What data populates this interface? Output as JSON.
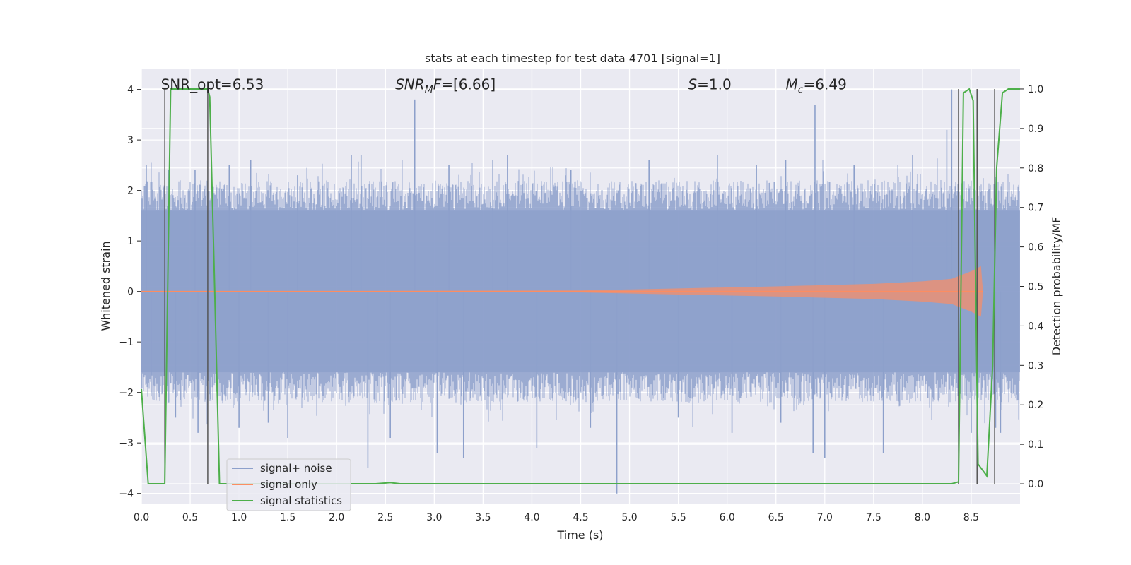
{
  "chart_data": {
    "type": "line",
    "title": "stats at each timestep for test data 4701 [signal=1]",
    "xlabel": "Time (s)",
    "ylabel": "Whitened strain",
    "y2label": "Detection probability/MF",
    "xlim": [
      0.0,
      9.0
    ],
    "ylim": [
      -4.2,
      4.4
    ],
    "y2lim": [
      -0.05,
      1.05
    ],
    "xticks": [
      "0.0",
      "0.5",
      "1.0",
      "1.5",
      "2.0",
      "2.5",
      "3.0",
      "3.5",
      "4.0",
      "4.5",
      "5.0",
      "5.5",
      "6.0",
      "6.5",
      "7.0",
      "7.5",
      "8.0",
      "8.5"
    ],
    "yticks": [
      "−4",
      "−3",
      "−2",
      "−1",
      "0",
      "1",
      "2",
      "3",
      "4"
    ],
    "y2ticks": [
      "0.0",
      "0.1",
      "0.2",
      "0.3",
      "0.4",
      "0.5",
      "0.6",
      "0.7",
      "0.8",
      "0.9",
      "1.0"
    ],
    "grid": true,
    "legend_position": "lower-left",
    "annotations": [
      {
        "text": "SNR_opt=6.53",
        "x": 0.2,
        "y": 4.1
      },
      {
        "text": "SNR",
        "sub": "M",
        "suffix": "F=[6.66]",
        "x": 2.6,
        "y": 4.1
      },
      {
        "text": "S",
        "suffix": "=1.0",
        "x": 5.6,
        "y": 4.1
      },
      {
        "text": "M",
        "sub": "c",
        "suffix": "=6.49",
        "x": 6.6,
        "y": 4.1
      }
    ],
    "series": [
      {
        "name": "signal+ noise",
        "color": "#8da0cb",
        "axis": "left",
        "noise_band": {
          "core": 1.6,
          "typical_peak": 2.2
        },
        "spikes": [
          {
            "x": 0.05,
            "y": 2.5
          },
          {
            "x": 0.1,
            "y": -2.0
          },
          {
            "x": 0.28,
            "y": 2.4
          },
          {
            "x": 0.35,
            "y": -2.5
          },
          {
            "x": 0.55,
            "y": 2.4
          },
          {
            "x": 0.58,
            "y": -2.8
          },
          {
            "x": 0.9,
            "y": 2.5
          },
          {
            "x": 1.0,
            "y": -2.7
          },
          {
            "x": 1.12,
            "y": 2.6
          },
          {
            "x": 1.3,
            "y": -2.6
          },
          {
            "x": 1.6,
            "y": 2.3
          },
          {
            "x": 1.5,
            "y": -2.9
          },
          {
            "x": 2.15,
            "y": 2.7
          },
          {
            "x": 2.25,
            "y": 2.7
          },
          {
            "x": 2.32,
            "y": -3.5
          },
          {
            "x": 2.55,
            "y": -2.9
          },
          {
            "x": 2.8,
            "y": 3.8
          },
          {
            "x": 3.03,
            "y": -3.2
          },
          {
            "x": 3.15,
            "y": 2.5
          },
          {
            "x": 3.3,
            "y": -3.3
          },
          {
            "x": 3.6,
            "y": 2.6
          },
          {
            "x": 3.75,
            "y": 2.7
          },
          {
            "x": 4.05,
            "y": -3.1
          },
          {
            "x": 4.4,
            "y": 2.4
          },
          {
            "x": 4.6,
            "y": -2.7
          },
          {
            "x": 4.87,
            "y": -4.0
          },
          {
            "x": 5.2,
            "y": 2.6
          },
          {
            "x": 5.5,
            "y": -2.5
          },
          {
            "x": 5.9,
            "y": 2.7
          },
          {
            "x": 6.05,
            "y": -2.8
          },
          {
            "x": 6.3,
            "y": 2.5
          },
          {
            "x": 6.55,
            "y": -2.6
          },
          {
            "x": 6.6,
            "y": 2.6
          },
          {
            "x": 6.9,
            "y": 3.7
          },
          {
            "x": 6.88,
            "y": -3.2
          },
          {
            "x": 7.0,
            "y": -3.3
          },
          {
            "x": 7.3,
            "y": 2.5
          },
          {
            "x": 7.6,
            "y": -3.2
          },
          {
            "x": 7.9,
            "y": 2.7
          },
          {
            "x": 8.25,
            "y": 3.2
          },
          {
            "x": 8.3,
            "y": 4.0
          },
          {
            "x": 8.5,
            "y": -2.8
          },
          {
            "x": 8.75,
            "y": -2.7
          },
          {
            "x": 8.8,
            "y": -2.8
          }
        ]
      },
      {
        "name": "signal only",
        "color": "#fc8d62",
        "axis": "left",
        "envelope": [
          [
            0.0,
            0.0
          ],
          [
            4.5,
            0.02
          ],
          [
            5.5,
            0.06
          ],
          [
            6.5,
            0.1
          ],
          [
            7.5,
            0.15
          ],
          [
            8.0,
            0.2
          ],
          [
            8.3,
            0.25
          ],
          [
            8.5,
            0.4
          ],
          [
            8.6,
            0.5
          ],
          [
            8.62,
            0.0
          ]
        ]
      },
      {
        "name": "signal statistics",
        "color": "#4daf4a",
        "axis": "right",
        "x": [
          0.0,
          0.07,
          0.2,
          0.24,
          0.3,
          0.5,
          0.68,
          0.7,
          0.75,
          0.8,
          2.4,
          2.55,
          2.65,
          8.3,
          8.37,
          8.42,
          8.48,
          8.52,
          8.57,
          8.6,
          8.66,
          8.72,
          8.76,
          8.82,
          8.88,
          9.0
        ],
        "y": [
          0.24,
          0.0,
          0.0,
          0.0,
          1.0,
          1.0,
          1.0,
          0.98,
          0.5,
          0.0,
          0.0,
          0.003,
          0.0,
          0.0,
          0.005,
          0.99,
          1.0,
          0.97,
          0.05,
          0.04,
          0.02,
          0.3,
          0.8,
          0.99,
          1.0,
          1.0
        ]
      }
    ],
    "vlines": [
      0.24,
      0.68,
      8.37,
      8.56,
      8.74
    ]
  }
}
